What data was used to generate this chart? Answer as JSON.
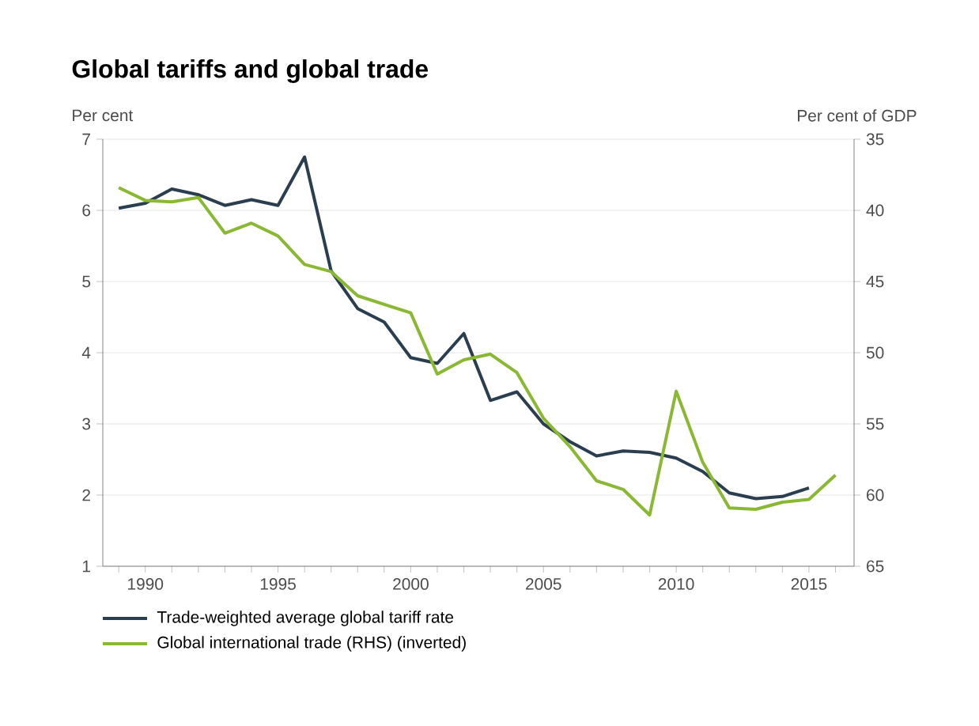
{
  "chart_data": {
    "type": "line",
    "title": "Global tariffs and global trade",
    "ylabel": "Per cent",
    "y2label": "Per cent of GDP",
    "x": [
      1989,
      1990,
      1991,
      1992,
      1993,
      1994,
      1995,
      1996,
      1997,
      1998,
      1999,
      2000,
      2001,
      2002,
      2003,
      2004,
      2005,
      2006,
      2007,
      2008,
      2009,
      2010,
      2011,
      2012,
      2013,
      2014,
      2015,
      2016
    ],
    "series": [
      {
        "name": "Trade-weighted average global tariff rate",
        "color": "#2b3e50",
        "values": [
          6.03,
          6.1,
          6.3,
          6.22,
          6.07,
          6.15,
          6.07,
          6.75,
          5.15,
          4.62,
          4.43,
          3.93,
          3.85,
          4.27,
          3.33,
          3.45,
          3.0,
          2.75,
          2.55,
          2.62,
          2.6,
          2.52,
          2.33,
          2.03,
          1.95,
          1.98,
          2.1,
          null
        ]
      },
      {
        "name": "Global international trade (RHS) (inverted)",
        "color": "#8ab833",
        "axis": "y2",
        "values": [
          38.4,
          39.3,
          39.4,
          39.1,
          41.6,
          40.9,
          41.8,
          43.8,
          44.3,
          46.0,
          46.6,
          47.2,
          51.5,
          50.5,
          50.1,
          51.4,
          54.6,
          56.6,
          59.0,
          59.6,
          61.4,
          52.7,
          57.7,
          60.9,
          61.0,
          60.5,
          60.3,
          58.6
        ]
      }
    ],
    "xlim": [
      1988.4,
      2016.7
    ],
    "xticks": [
      {
        "value": 1989,
        "label": null
      },
      1990,
      {
        "value": 1991,
        "label": null
      },
      {
        "value": 1992,
        "label": null
      },
      {
        "value": 1993,
        "label": null
      },
      {
        "value": 1994,
        "label": null
      },
      1995,
      {
        "value": 1996,
        "label": null
      },
      {
        "value": 1997,
        "label": null
      },
      {
        "value": 1998,
        "label": null
      },
      {
        "value": 1999,
        "label": null
      },
      2000,
      {
        "value": 2001,
        "label": null
      },
      {
        "value": 2002,
        "label": null
      },
      {
        "value": 2003,
        "label": null
      },
      {
        "value": 2004,
        "label": null
      },
      2005,
      {
        "value": 2006,
        "label": null
      },
      {
        "value": 2007,
        "label": null
      },
      {
        "value": 2008,
        "label": null
      },
      {
        "value": 2009,
        "label": null
      },
      2010,
      {
        "value": 2011,
        "label": null
      },
      {
        "value": 2012,
        "label": null
      },
      {
        "value": 2013,
        "label": null
      },
      {
        "value": 2014,
        "label": null
      },
      2015,
      {
        "value": 2016,
        "label": null
      }
    ],
    "ylim": [
      1,
      7
    ],
    "yticks": [
      1,
      2,
      3,
      4,
      5,
      6,
      7
    ],
    "y2lim": [
      65,
      35
    ],
    "y2ticks": [
      35,
      40,
      45,
      50,
      55,
      60,
      65
    ],
    "grid": "y",
    "legend": "bottom",
    "marker": "none",
    "line_style": "solid"
  }
}
